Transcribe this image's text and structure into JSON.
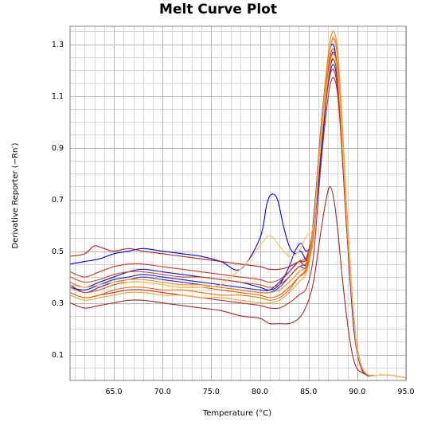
{
  "chart_data": {
    "type": "line",
    "title": "Melt Curve Plot",
    "xlabel": "Temperature (°C)",
    "ylabel": "Derivative Reporter (−Rn′)",
    "xlim": [
      60.5,
      95.0
    ],
    "ylim": [
      0.0,
      1.37
    ],
    "xticks": [
      65.0,
      70.0,
      75.0,
      80.0,
      85.0,
      90.0,
      95.0
    ],
    "xtick_labels": [
      "65.0",
      "70.0",
      "75.0",
      "80.0",
      "85.0",
      "90.0",
      "95.0"
    ],
    "yticks": [
      0.1,
      0.3,
      0.5,
      0.7,
      0.9,
      1.1,
      1.3
    ],
    "ytick_labels": [
      "0.1",
      "0.3",
      "0.5",
      "0.7",
      "0.9",
      "1.1",
      "1.3"
    ],
    "grid": true,
    "legend": "none",
    "series": [
      {
        "color": "#0000e0",
        "x": [
          60.5,
          62,
          63.5,
          65,
          66.5,
          68,
          70,
          72,
          74,
          76,
          78,
          80,
          80.7,
          81.2,
          81.8,
          82.4,
          83,
          83.6,
          84.2,
          85,
          85.6,
          86.2,
          86.8,
          87.2,
          87.5,
          87.8,
          88.2,
          88.7,
          89.2,
          89.7,
          90.3,
          91,
          92,
          93.5,
          95
        ],
        "y": [
          0.45,
          0.46,
          0.47,
          0.49,
          0.5,
          0.51,
          0.5,
          0.49,
          0.48,
          0.46,
          0.43,
          0.55,
          0.68,
          0.72,
          0.7,
          0.6,
          0.52,
          0.49,
          0.5,
          0.47,
          0.66,
          0.95,
          1.18,
          1.28,
          1.3,
          1.25,
          1.05,
          0.72,
          0.42,
          0.18,
          0.06,
          0.02,
          0.02,
          0.02,
          0.01
        ]
      },
      {
        "color": "#1010d8",
        "x": [
          60.5,
          62,
          63.5,
          65,
          66.5,
          68,
          70,
          72,
          74,
          76,
          78,
          80,
          81,
          82,
          83,
          83.6,
          84.2,
          84.8,
          85.4,
          86,
          86.6,
          87.1,
          87.5,
          87.9,
          88.3,
          88.8,
          89.3,
          89.8,
          90.4,
          91,
          92,
          93.5,
          95
        ],
        "y": [
          0.38,
          0.36,
          0.38,
          0.4,
          0.42,
          0.43,
          0.42,
          0.41,
          0.4,
          0.39,
          0.38,
          0.36,
          0.35,
          0.37,
          0.44,
          0.5,
          0.53,
          0.5,
          0.55,
          0.75,
          1.0,
          1.2,
          1.27,
          1.22,
          1.02,
          0.7,
          0.4,
          0.17,
          0.05,
          0.02,
          0.02,
          0.02,
          0.01
        ]
      },
      {
        "color": "#2020c8",
        "x": [
          60.5,
          62,
          63.5,
          65,
          66.5,
          68,
          70,
          72,
          74,
          76,
          78,
          80,
          81,
          82,
          83,
          84,
          84.8,
          85.5,
          86.1,
          86.7,
          87.2,
          87.6,
          88,
          88.4,
          88.9,
          89.4,
          89.9,
          90.5,
          91.2,
          92,
          93.5,
          95
        ],
        "y": [
          0.36,
          0.35,
          0.37,
          0.39,
          0.4,
          0.41,
          0.4,
          0.39,
          0.38,
          0.37,
          0.36,
          0.35,
          0.35,
          0.38,
          0.42,
          0.46,
          0.45,
          0.58,
          0.85,
          1.08,
          1.21,
          1.24,
          1.16,
          0.96,
          0.64,
          0.36,
          0.15,
          0.05,
          0.02,
          0.02,
          0.02,
          0.01
        ]
      },
      {
        "color": "#3a2ad0",
        "x": [
          60.5,
          62,
          63.5,
          65,
          66.5,
          68,
          70,
          72,
          74,
          76,
          78,
          80,
          81,
          82,
          83,
          84,
          84.8,
          85.5,
          86.1,
          86.7,
          87.2,
          87.6,
          88,
          88.4,
          88.9,
          89.4,
          89.9,
          90.5,
          91.2,
          92,
          93.5,
          95
        ],
        "y": [
          0.37,
          0.34,
          0.36,
          0.38,
          0.39,
          0.4,
          0.39,
          0.38,
          0.37,
          0.36,
          0.35,
          0.34,
          0.34,
          0.36,
          0.4,
          0.44,
          0.44,
          0.55,
          0.82,
          1.05,
          1.19,
          1.22,
          1.14,
          0.94,
          0.62,
          0.35,
          0.14,
          0.05,
          0.02,
          0.02,
          0.02,
          0.01
        ]
      },
      {
        "color": "#b22020",
        "x": [
          60.5,
          62,
          63,
          64,
          65,
          66.5,
          68,
          70,
          72,
          74,
          76,
          78,
          80,
          81,
          82,
          83,
          84,
          84.8,
          85.5,
          86.1,
          86.7,
          87.2,
          87.6,
          88,
          88.4,
          88.9,
          89.4,
          89.9,
          90.5,
          91.2,
          92,
          93.5,
          95
        ],
        "y": [
          0.48,
          0.49,
          0.52,
          0.51,
          0.5,
          0.51,
          0.5,
          0.49,
          0.48,
          0.47,
          0.46,
          0.45,
          0.44,
          0.43,
          0.43,
          0.44,
          0.46,
          0.47,
          0.58,
          0.84,
          1.06,
          1.18,
          1.2,
          1.12,
          0.92,
          0.6,
          0.33,
          0.13,
          0.04,
          0.02,
          0.02,
          0.02,
          0.01
        ]
      },
      {
        "color": "#a02828",
        "x": [
          60.5,
          62,
          63.5,
          65,
          66.5,
          68,
          70,
          72,
          74,
          76,
          78,
          80,
          81,
          82,
          83,
          84,
          84.8,
          85.5,
          86.2,
          86.8,
          87.2,
          87.6,
          88,
          88.4,
          88.9,
          89.4,
          89.9,
          90.5,
          91.2,
          92,
          93.5,
          95
        ],
        "y": [
          0.3,
          0.28,
          0.29,
          0.3,
          0.31,
          0.31,
          0.3,
          0.29,
          0.28,
          0.27,
          0.25,
          0.24,
          0.22,
          0.22,
          0.22,
          0.24,
          0.29,
          0.38,
          0.56,
          0.7,
          0.75,
          0.7,
          0.58,
          0.42,
          0.25,
          0.12,
          0.05,
          0.03,
          0.02,
          0.02,
          0.02,
          0.01
        ]
      },
      {
        "color": "#b83030",
        "x": [
          60.5,
          62,
          63.5,
          65,
          66.5,
          68,
          70,
          72,
          74,
          76,
          78,
          80,
          81,
          82,
          83,
          84,
          84.8,
          85.5,
          86.1,
          86.7,
          87.2,
          87.6,
          88,
          88.4,
          88.9,
          89.4,
          89.9,
          90.5,
          91.2,
          92,
          93.5,
          95
        ],
        "y": [
          0.34,
          0.32,
          0.33,
          0.34,
          0.35,
          0.35,
          0.34,
          0.33,
          0.32,
          0.31,
          0.3,
          0.29,
          0.28,
          0.28,
          0.3,
          0.33,
          0.36,
          0.48,
          0.76,
          1.0,
          1.14,
          1.17,
          1.1,
          0.9,
          0.59,
          0.33,
          0.13,
          0.04,
          0.02,
          0.02,
          0.02,
          0.01
        ]
      },
      {
        "color": "#c83a28",
        "x": [
          60.5,
          62,
          63.5,
          65,
          66.5,
          68,
          70,
          72,
          74,
          76,
          78,
          80,
          81,
          82,
          83,
          84,
          84.8,
          85.5,
          86.1,
          86.7,
          87.2,
          87.6,
          88,
          88.4,
          88.9,
          89.4,
          89.9,
          90.5,
          91.2,
          92,
          93.5,
          95
        ],
        "y": [
          0.42,
          0.4,
          0.42,
          0.44,
          0.45,
          0.45,
          0.44,
          0.43,
          0.42,
          0.41,
          0.4,
          0.39,
          0.38,
          0.39,
          0.42,
          0.46,
          0.48,
          0.6,
          0.88,
          1.1,
          1.22,
          1.24,
          1.16,
          0.95,
          0.63,
          0.35,
          0.14,
          0.05,
          0.02,
          0.02,
          0.02,
          0.01
        ]
      },
      {
        "color": "#d04a20",
        "x": [
          60.5,
          62,
          63.5,
          65,
          66.5,
          68,
          70,
          72,
          74,
          76,
          78,
          80,
          81,
          82,
          83,
          84,
          84.8,
          85.5,
          86.1,
          86.7,
          87.2,
          87.6,
          88,
          88.4,
          88.9,
          89.4,
          89.9,
          90.5,
          91.2,
          92,
          93.5,
          95
        ],
        "y": [
          0.4,
          0.38,
          0.39,
          0.41,
          0.42,
          0.42,
          0.41,
          0.4,
          0.4,
          0.39,
          0.38,
          0.37,
          0.36,
          0.37,
          0.4,
          0.44,
          0.46,
          0.58,
          0.86,
          1.1,
          1.25,
          1.28,
          1.2,
          0.98,
          0.65,
          0.36,
          0.14,
          0.05,
          0.02,
          0.02,
          0.02,
          0.01
        ]
      },
      {
        "color": "#e05a1a",
        "x": [
          60.5,
          62,
          63.5,
          65,
          66.5,
          68,
          70,
          72,
          74,
          76,
          78,
          80,
          81,
          82,
          83,
          84,
          84.8,
          85.5,
          86.1,
          86.7,
          87.2,
          87.6,
          88,
          88.4,
          88.9,
          89.4,
          89.9,
          90.5,
          91.2,
          92,
          93.5,
          95
        ],
        "y": [
          0.36,
          0.34,
          0.35,
          0.37,
          0.38,
          0.38,
          0.37,
          0.36,
          0.36,
          0.35,
          0.34,
          0.33,
          0.32,
          0.33,
          0.36,
          0.4,
          0.43,
          0.56,
          0.84,
          1.08,
          1.23,
          1.26,
          1.18,
          0.97,
          0.64,
          0.35,
          0.14,
          0.05,
          0.02,
          0.02,
          0.02,
          0.01
        ]
      },
      {
        "color": "#e87010",
        "x": [
          60.5,
          62,
          63.5,
          65,
          66.5,
          68,
          70,
          72,
          74,
          76,
          78,
          80,
          81,
          82,
          83,
          84,
          84.8,
          85.5,
          86.1,
          86.7,
          87.2,
          87.6,
          88,
          88.4,
          88.9,
          89.4,
          89.9,
          90.5,
          91.2,
          92,
          93.5,
          95
        ],
        "y": [
          0.34,
          0.32,
          0.33,
          0.35,
          0.36,
          0.36,
          0.35,
          0.35,
          0.34,
          0.33,
          0.33,
          0.32,
          0.31,
          0.32,
          0.35,
          0.4,
          0.44,
          0.58,
          0.88,
          1.12,
          1.28,
          1.32,
          1.24,
          1.02,
          0.67,
          0.37,
          0.15,
          0.05,
          0.02,
          0.02,
          0.02,
          0.01
        ]
      },
      {
        "color": "#f08a18",
        "x": [
          60.5,
          62,
          63.5,
          65,
          66.5,
          68,
          70,
          72,
          74,
          76,
          78,
          80,
          81,
          82,
          83,
          84,
          84.8,
          85.5,
          86.1,
          86.7,
          87.2,
          87.6,
          88,
          88.4,
          88.9,
          89.4,
          89.9,
          90.5,
          91.2,
          92,
          93.5,
          95
        ],
        "y": [
          0.38,
          0.36,
          0.37,
          0.38,
          0.39,
          0.39,
          0.38,
          0.37,
          0.37,
          0.36,
          0.35,
          0.34,
          0.34,
          0.35,
          0.38,
          0.42,
          0.45,
          0.6,
          0.9,
          1.15,
          1.31,
          1.35,
          1.27,
          1.04,
          0.68,
          0.37,
          0.15,
          0.05,
          0.02,
          0.02,
          0.02,
          0.01
        ]
      },
      {
        "color": "#f0a030",
        "x": [
          60.5,
          62,
          63.5,
          65,
          66.5,
          68,
          70,
          72,
          74,
          76,
          78,
          80,
          81,
          82,
          83,
          84,
          84.8,
          85.5,
          86.1,
          86.7,
          87.2,
          87.6,
          88,
          88.4,
          88.9,
          89.4,
          89.9,
          90.5,
          91.2,
          92,
          93.5,
          95
        ],
        "y": [
          0.33,
          0.31,
          0.32,
          0.33,
          0.34,
          0.34,
          0.33,
          0.33,
          0.32,
          0.32,
          0.31,
          0.3,
          0.3,
          0.31,
          0.34,
          0.38,
          0.42,
          0.56,
          0.86,
          1.12,
          1.28,
          1.33,
          1.25,
          1.03,
          0.67,
          0.37,
          0.15,
          0.05,
          0.02,
          0.02,
          0.02,
          0.01
        ]
      },
      {
        "color": "#f4c060",
        "x": [
          60.5,
          62,
          63.5,
          65,
          66.5,
          68,
          70,
          72,
          74,
          76,
          77,
          78,
          79,
          80,
          81,
          82,
          83,
          84,
          84.8,
          85.5,
          86.1,
          86.7,
          87.2,
          87.6,
          88,
          88.4,
          88.9,
          89.4,
          89.9,
          90.5,
          91.2,
          92,
          93.5,
          95
        ],
        "y": [
          0.37,
          0.36,
          0.37,
          0.38,
          0.38,
          0.38,
          0.37,
          0.36,
          0.36,
          0.37,
          0.4,
          0.43,
          0.47,
          0.52,
          0.56,
          0.52,
          0.48,
          0.5,
          0.56,
          0.6,
          0.85,
          1.08,
          1.22,
          1.26,
          1.18,
          0.96,
          0.64,
          0.35,
          0.14,
          0.05,
          0.02,
          0.02,
          0.02,
          0.01
        ]
      }
    ]
  }
}
